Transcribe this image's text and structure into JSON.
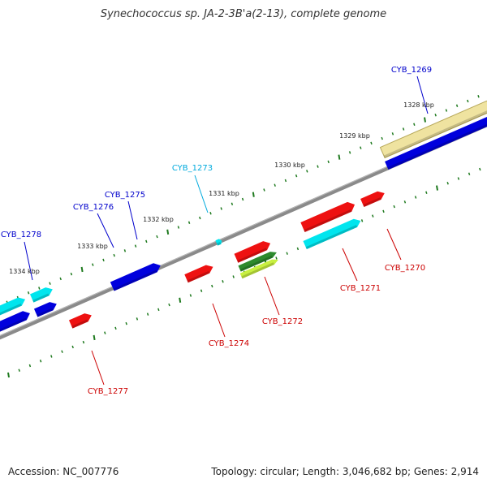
{
  "title": "Synechococcus sp. JA-2-3B'a(2-13), complete genome",
  "footer": {
    "accession": "Accession: NC_007776",
    "stats": "Topology: circular; Length: 3,046,682 bp; Genes: 2,914"
  },
  "colors": {
    "backbone": "#7f7f7f",
    "ticks": "#1f7a1f",
    "forward_gene": "#0000dd",
    "reverse_gene": "#ee1111",
    "cyan_gene": "#00e5ee",
    "pale_gene": "#efe3a0",
    "pale_gene_edge": "#b7a85a",
    "green_gene": "#2d8a2d",
    "yellowgreen_gene": "#c8f040",
    "label_blue": "#0000cc",
    "label_red": "#cc0000",
    "label_cyan": "#00aadd"
  },
  "scale_labels": [
    "1328 kbp",
    "1329 kbp",
    "1330 kbp",
    "1331 kbp",
    "1332 kbp",
    "1333 kbp",
    "1334 kbp"
  ],
  "genes": [
    {
      "name": "CYB_1269",
      "color": "label_blue"
    },
    {
      "name": "CYB_1270",
      "color": "label_red"
    },
    {
      "name": "CYB_1271",
      "color": "label_red"
    },
    {
      "name": "CYB_1272",
      "color": "label_red"
    },
    {
      "name": "CYB_1273",
      "color": "label_cyan"
    },
    {
      "name": "CYB_1274",
      "color": "label_red"
    },
    {
      "name": "CYB_1275",
      "color": "label_blue"
    },
    {
      "name": "CYB_1276",
      "color": "label_blue"
    },
    {
      "name": "CYB_1277",
      "color": "label_red"
    },
    {
      "name": "CYB_1278",
      "color": "label_blue"
    }
  ]
}
